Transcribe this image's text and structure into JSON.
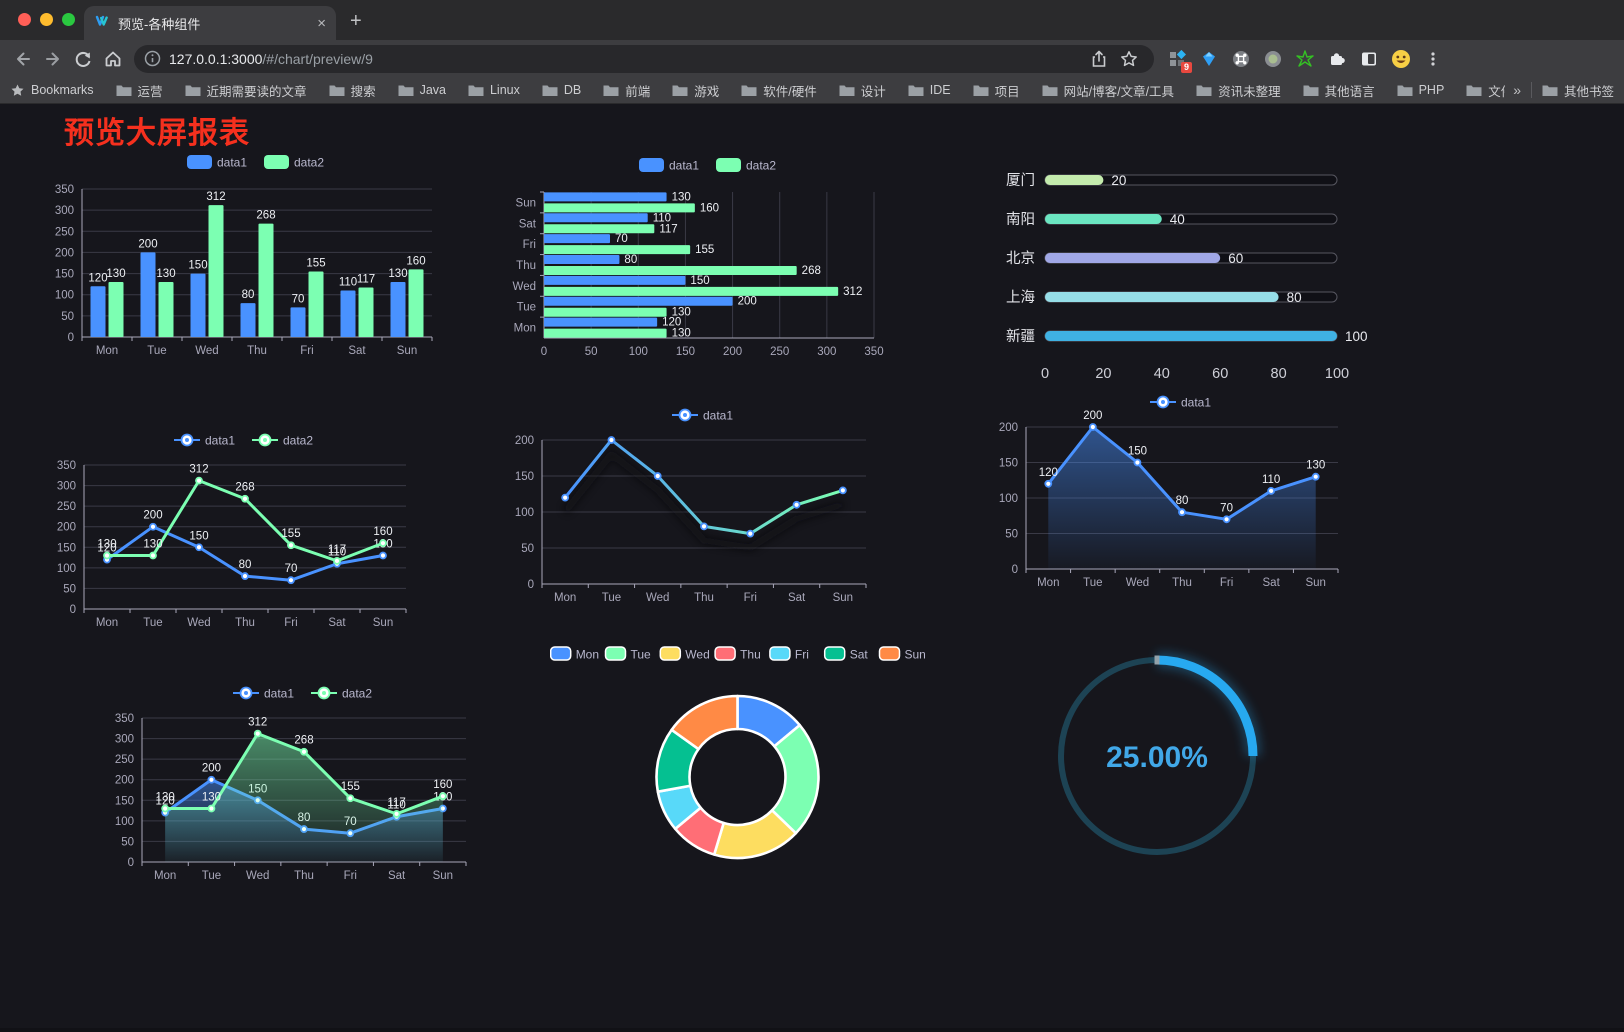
{
  "browser": {
    "tab": {
      "title": "预览-各种组件",
      "close": "×",
      "new_tab": "+"
    },
    "url": {
      "host": "127.0.0.1:3000",
      "path": "/#/chart/preview/9"
    },
    "extension_badge": "9",
    "bookmarks_label": "Bookmarks",
    "bookmarks": [
      "运营",
      "近期需要读的文章",
      "搜索",
      "Java",
      "Linux",
      "DB",
      "前端",
      "游戏",
      "软件/硬件",
      "设计",
      "IDE",
      "项目",
      "网站/博客/文章/工具",
      "资讯未整理",
      "其他语言",
      "PHP",
      "文件服务器"
    ],
    "overflow_chevron": "»",
    "other_bookmarks": "其他书签"
  },
  "page": {
    "title": "预览大屏报表",
    "title_color": "#f5301e",
    "background": "#16161c"
  },
  "chart_data": [
    {
      "id": "bar-vertical",
      "type": "bar",
      "categories": [
        "Mon",
        "Tue",
        "Wed",
        "Thu",
        "Fri",
        "Sat",
        "Sun"
      ],
      "series": [
        {
          "name": "data1",
          "color": "#4992ff",
          "values": [
            120,
            200,
            150,
            80,
            70,
            110,
            130
          ]
        },
        {
          "name": "data2",
          "color": "#7cffb2",
          "values": [
            130,
            130,
            312,
            268,
            155,
            117,
            160
          ]
        }
      ],
      "ylim": [
        0,
        350
      ],
      "yticks": [
        0,
        50,
        100,
        150,
        200,
        250,
        300,
        350
      ],
      "legend_position": "top",
      "grid": true
    },
    {
      "id": "bar-horizontal",
      "type": "hbar",
      "categories": [
        "Mon",
        "Tue",
        "Wed",
        "Thu",
        "Fri",
        "Sat",
        "Sun"
      ],
      "series": [
        {
          "name": "data1",
          "color": "#4992ff",
          "values": [
            120,
            200,
            150,
            80,
            70,
            110,
            130
          ]
        },
        {
          "name": "data2",
          "color": "#7cffb2",
          "values": [
            130,
            130,
            312,
            268,
            155,
            117,
            160
          ]
        }
      ],
      "xlim": [
        0,
        350
      ],
      "xticks": [
        0,
        50,
        100,
        150,
        200,
        250,
        300,
        350
      ],
      "legend_position": "top",
      "grid": true
    },
    {
      "id": "city-progress",
      "type": "progress",
      "max": 100,
      "axis_ticks": [
        0,
        20,
        40,
        60,
        80,
        100
      ],
      "items": [
        {
          "label": "厦门",
          "value": 20,
          "color": "#c4ebad"
        },
        {
          "label": "南阳",
          "value": 40,
          "color": "#6be6c1"
        },
        {
          "label": "北京",
          "value": 60,
          "color": "#a0a7e6"
        },
        {
          "label": "上海",
          "value": 80,
          "color": "#96dee8"
        },
        {
          "label": "新疆",
          "value": 100,
          "color": "#3fb1e3"
        }
      ]
    },
    {
      "id": "line-basic",
      "type": "line",
      "area": false,
      "labels": true,
      "categories": [
        "Mon",
        "Tue",
        "Wed",
        "Thu",
        "Fri",
        "Sat",
        "Sun"
      ],
      "series": [
        {
          "name": "data1",
          "color": "#4992ff",
          "values": [
            120,
            200,
            150,
            80,
            70,
            110,
            130
          ]
        },
        {
          "name": "data2",
          "color": "#7cffb2",
          "values": [
            130,
            130,
            312,
            268,
            155,
            117,
            160
          ]
        }
      ],
      "ylim": [
        0,
        350
      ],
      "yticks": [
        0,
        50,
        100,
        150,
        200,
        250,
        300,
        350
      ],
      "legend_position": "top",
      "grid": true
    },
    {
      "id": "line-gradient",
      "type": "line",
      "area": false,
      "labels": false,
      "shadow": true,
      "categories": [
        "Mon",
        "Tue",
        "Wed",
        "Thu",
        "Fri",
        "Sat",
        "Sun"
      ],
      "series": [
        {
          "name": "data1",
          "color": "#4992ff",
          "gradient": [
            "#4992ff",
            "#7cffb2"
          ],
          "values": [
            120,
            200,
            150,
            80,
            70,
            110,
            130
          ]
        }
      ],
      "ylim": [
        0,
        200
      ],
      "yticks": [
        0,
        50,
        100,
        150,
        200
      ],
      "legend_position": "top",
      "grid": true
    },
    {
      "id": "line-area-single",
      "type": "line",
      "area": true,
      "labels": true,
      "categories": [
        "Mon",
        "Tue",
        "Wed",
        "Thu",
        "Fri",
        "Sat",
        "Sun"
      ],
      "series": [
        {
          "name": "data1",
          "color": "#4992ff",
          "values": [
            120,
            200,
            150,
            80,
            70,
            110,
            130
          ]
        }
      ],
      "ylim": [
        0,
        200
      ],
      "yticks": [
        0,
        50,
        100,
        150,
        200
      ],
      "legend_position": "top",
      "grid": true
    },
    {
      "id": "line-area-double",
      "type": "line",
      "area": true,
      "labels": true,
      "categories": [
        "Mon",
        "Tue",
        "Wed",
        "Thu",
        "Fri",
        "Sat",
        "Sun"
      ],
      "series": [
        {
          "name": "data1",
          "color": "#4992ff",
          "values": [
            120,
            200,
            150,
            80,
            70,
            110,
            130
          ]
        },
        {
          "name": "data2",
          "color": "#7cffb2",
          "values": [
            130,
            130,
            312,
            268,
            155,
            117,
            160
          ]
        }
      ],
      "ylim": [
        0,
        350
      ],
      "yticks": [
        0,
        50,
        100,
        150,
        200,
        250,
        300,
        350
      ],
      "legend_position": "top",
      "grid": true
    },
    {
      "id": "donut",
      "type": "pie",
      "legend_position": "top",
      "items": [
        {
          "name": "Mon",
          "value": 120,
          "color": "#4992ff"
        },
        {
          "name": "Tue",
          "value": 200,
          "color": "#7cffb2"
        },
        {
          "name": "Wed",
          "value": 150,
          "color": "#fddd60"
        },
        {
          "name": "Thu",
          "value": 80,
          "color": "#ff6e76"
        },
        {
          "name": "Fri",
          "value": 70,
          "color": "#58d9f9"
        },
        {
          "name": "Sat",
          "value": 110,
          "color": "#05c091"
        },
        {
          "name": "Sun",
          "value": 130,
          "color": "#ff8a45"
        }
      ]
    },
    {
      "id": "gauge",
      "type": "gauge",
      "value": 25,
      "display": "25.00%",
      "color": "#27a9f0",
      "track_color": "#1d4354",
      "text_color": "#41a8e8"
    }
  ]
}
